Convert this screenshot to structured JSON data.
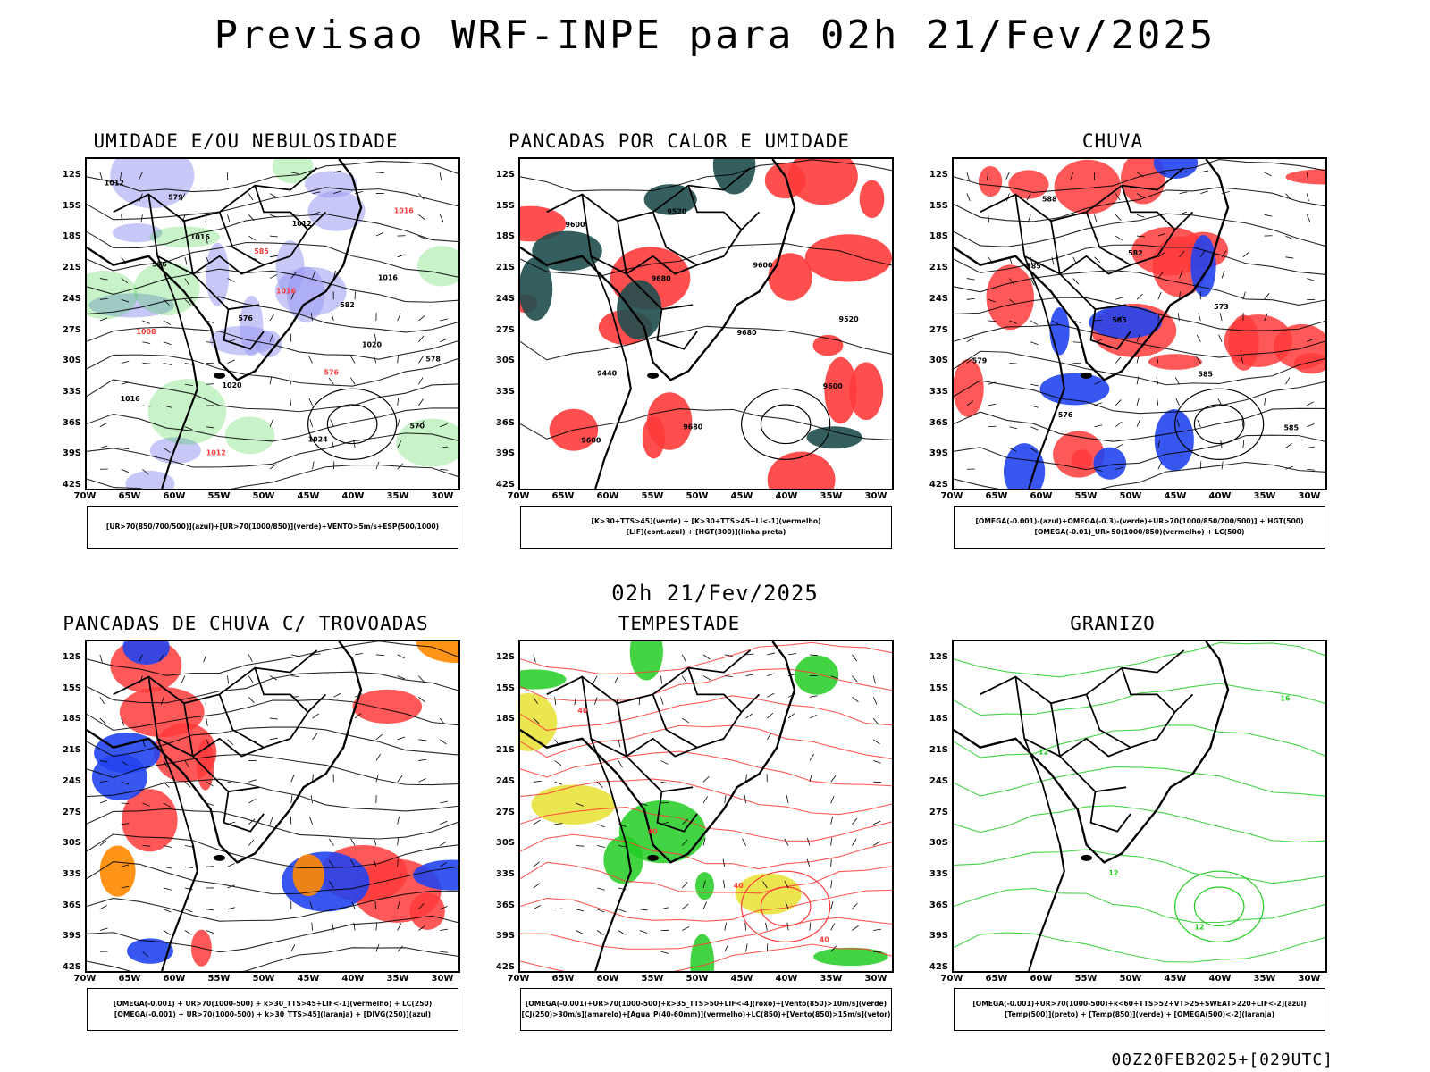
{
  "main_title": "Previsao WRF-INPE  para 02h 21/Fev/2025",
  "valid_time": "02h 21/Fev/2025",
  "run_label": "00Z20FEB2025+[029UTC]",
  "axes": {
    "lat_labels": [
      "12S",
      "15S",
      "18S",
      "21S",
      "24S",
      "27S",
      "30S",
      "33S",
      "36S",
      "39S",
      "42S"
    ],
    "lon_labels": [
      "70W",
      "65W",
      "60W",
      "55W",
      "50W",
      "45W",
      "40W",
      "35W",
      "30W"
    ]
  },
  "colors": {
    "coast": "#000000",
    "humidity_blue": "#9b9bf2",
    "green": "#22cc22",
    "red": "#ff3b3b",
    "dark_teal": "#1f4e4e",
    "blue": "#2244ee",
    "orange": "#ff8800",
    "yellow": "#e8e030"
  },
  "panels": [
    {
      "title": "UMIDADE E/OU NEBULOSIDADE",
      "legend": [
        "[UR>70(850/700/500)](azul)+[UR>70(1000/850)](verde)+VENTO>5m/s+ESP(500/1000)"
      ],
      "contour_labels": [
        "1012",
        "1016",
        "1016",
        "1020",
        "1016",
        "1012",
        "1012",
        "1016",
        "1008",
        "1020",
        "1024",
        "1016",
        "576",
        "576",
        "576",
        "570",
        "579",
        "585",
        "582",
        "578"
      ]
    },
    {
      "title": "PANCADAS POR CALOR E UMIDADE",
      "legend": [
        "[K>30+TTS>45](verde) + [K>30+TTS>45+LI<-1](vermelho)",
        "[LIF](cont.azul) + [HGT(300)](linha preta)"
      ],
      "contour_labels": [
        "9600",
        "9680",
        "9680",
        "9600",
        "9600",
        "9520",
        "9600",
        "9520",
        "9440",
        "9680"
      ]
    },
    {
      "title": "CHUVA",
      "legend": [
        "[OMEGA(-0.001)-(azul)+OMEGA(-0.3)-(verde)+UR>70(1000/850/700/500)] + HGT(500)",
        "[OMEGA(-0.01)_UR>50(1000/850)(vermelho) + LC(500)"
      ],
      "contour_labels": [
        "585",
        "585",
        "585",
        "585",
        "588",
        "582",
        "573",
        "579",
        "576"
      ]
    },
    {
      "title": "PANCADAS DE CHUVA C/ TROVOADAS",
      "legend": [
        "[OMEGA(-0.001) + UR>70(1000-500) + k>30_TTS>45+LIF<-1](vermelho) + LC(250)",
        "[OMEGA(-0.001) + UR>70(1000-500) + k>30_TTS>45](laranja) + [DIVG(250)](azul)"
      ]
    },
    {
      "title": "TEMPESTADE",
      "legend": [
        "[OMEGA(-0.001)+UR>70(1000-500)+k>35_TTS>50+LIF<-4](roxo)+[Vento(850)>10m/s](verde)",
        "[CJ(250)>30m/s](amarelo)+[Agua_P(40-60mm)](vermelho)+LC(850)+[Vento(850)>15m/s](vetor)"
      ],
      "contour_labels": [
        "40",
        "40",
        "40",
        "40"
      ]
    },
    {
      "title": "GRANIZO",
      "legend": [
        "[OMEGA(-0.001)+UR>70(1000-500)+k<60+TTS>52+VT>25+SWEAT>220+LIF<-2](azul)",
        "[Temp(500)](preto) + [Temp(850)](verde) + [OMEGA(500)<-2](laranja)"
      ],
      "contour_labels": [
        "12",
        "12",
        "16",
        "12"
      ]
    }
  ]
}
